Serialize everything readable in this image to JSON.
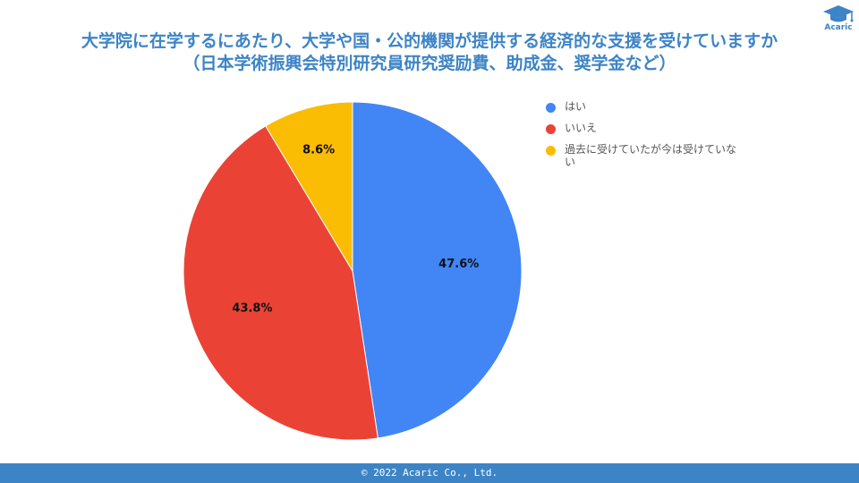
{
  "title": {
    "line1": "大学院に在学するにあたり、大学や国・公的機関が提供する経済的な支援を受けていますか",
    "line2": "（日本学術振興会特別研究員研究奨励費、助成金、奨学金など）"
  },
  "logo": {
    "text": "Acaric",
    "icon": "graduation-cap-icon"
  },
  "chart_data": {
    "type": "pie",
    "title": "",
    "slices": [
      {
        "label": "はい",
        "value": 47.6,
        "display": "47.6%",
        "color": "#4285f4"
      },
      {
        "label": "いいえ",
        "value": 43.8,
        "display": "43.8%",
        "color": "#ea4335"
      },
      {
        "label": "過去に受けていたが今は受けていない",
        "value": 8.6,
        "display": "8.6%",
        "color": "#fbbc04"
      }
    ],
    "start_angle_deg": 0,
    "direction": "clockwise",
    "legend_position": "right"
  },
  "footer": {
    "text": "© 2022 Acaric Co., Ltd."
  }
}
